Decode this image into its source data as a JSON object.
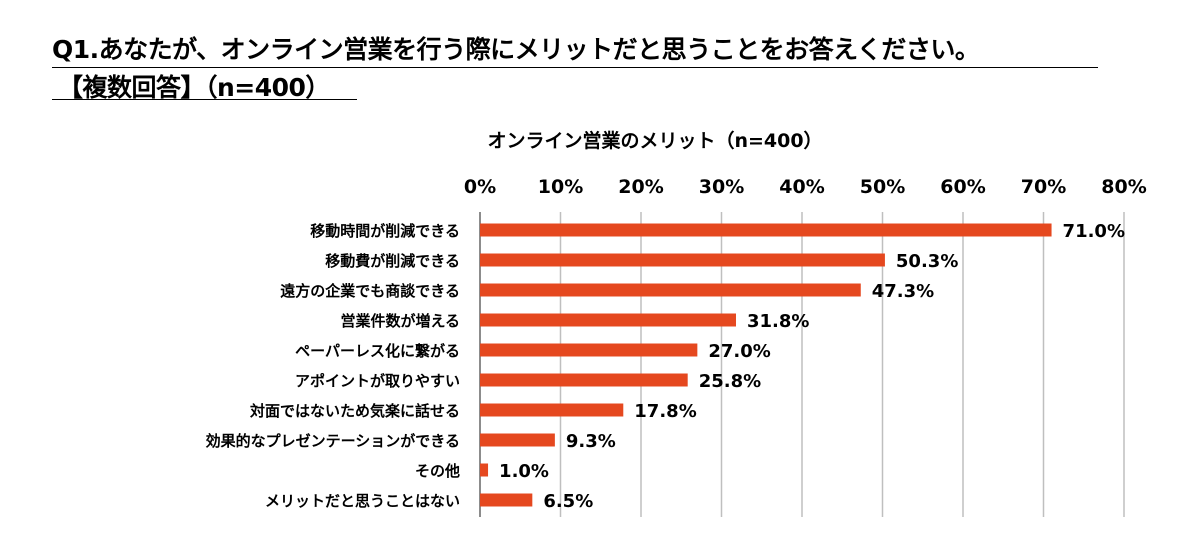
{
  "question": {
    "line1": "Q1.あなたが、オンライン営業を行う際にメリットだと思うことをお答えください。",
    "line2": "【複数回答】（n=400）"
  },
  "chart_data": {
    "type": "bar",
    "orientation": "horizontal",
    "title": "オンライン営業のメリット（n=400）",
    "categories": [
      "移動時間が削減できる",
      "移動費が削減できる",
      "遠方の企業でも商談できる",
      "営業件数が増える",
      "ペーパーレス化に繋がる",
      "アポイントが取りやすい",
      "対面ではないため気楽に話せる",
      "効果的なプレゼンテーションができる",
      "その他",
      "メリットだと思うことはない"
    ],
    "values": [
      71.0,
      50.3,
      47.3,
      31.8,
      27.0,
      25.8,
      17.8,
      9.3,
      1.0,
      6.5
    ],
    "data_labels": [
      "71.0%",
      "50.3%",
      "47.3%",
      "31.8%",
      "27.0%",
      "25.8%",
      "17.8%",
      "9.3%",
      "1.0%",
      "6.5%"
    ],
    "x_ticks": [
      "0%",
      "10%",
      "20%",
      "30%",
      "40%",
      "50%",
      "60%",
      "70%",
      "80%"
    ],
    "xlim": [
      0,
      80
    ],
    "axis_position": "top",
    "grid": true,
    "colors": {
      "bar": "#E5481F",
      "grid": "#BFBFBF",
      "text": "#000000"
    }
  }
}
